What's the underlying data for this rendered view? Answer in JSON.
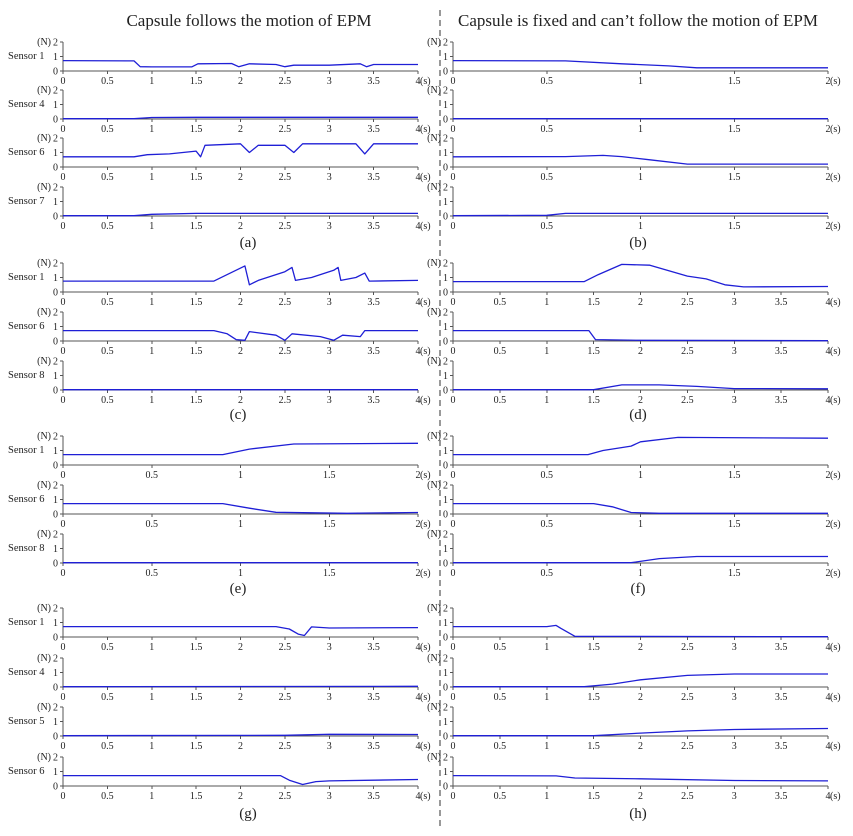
{
  "figure": {
    "left_heading": "Capsule follows the motion of EPM",
    "right_heading": "Capsule is fixed and can’t follow the motion of EPM",
    "y_unit": "(N)",
    "x_unit": "(s)",
    "trace_color": "#1f1fd6"
  },
  "chart_data": [
    {
      "panel": "(a)",
      "type": "line",
      "xlim": [
        0,
        4
      ],
      "ylim": [
        0,
        2
      ],
      "xticks": [
        0,
        0.5,
        1,
        1.5,
        2,
        2.5,
        3,
        3.5,
        4
      ],
      "yticks": [
        0,
        1,
        2
      ],
      "series": [
        {
          "name": "Sensor 1",
          "points": [
            [
              0,
              0.72
            ],
            [
              0.8,
              0.7
            ],
            [
              0.87,
              0.3
            ],
            [
              1.0,
              0.28
            ],
            [
              1.45,
              0.28
            ],
            [
              1.52,
              0.5
            ],
            [
              1.9,
              0.52
            ],
            [
              1.98,
              0.3
            ],
            [
              2.1,
              0.5
            ],
            [
              2.4,
              0.45
            ],
            [
              2.5,
              0.3
            ],
            [
              2.6,
              0.4
            ],
            [
              3.0,
              0.4
            ],
            [
              3.35,
              0.5
            ],
            [
              3.42,
              0.3
            ],
            [
              3.5,
              0.45
            ],
            [
              4,
              0.45
            ]
          ]
        },
        {
          "name": "Sensor 4",
          "points": [
            [
              0,
              0.02
            ],
            [
              0.8,
              0.02
            ],
            [
              1.0,
              0.1
            ],
            [
              1.5,
              0.12
            ],
            [
              4,
              0.12
            ]
          ]
        },
        {
          "name": "Sensor 6",
          "points": [
            [
              0,
              0.7
            ],
            [
              0.8,
              0.7
            ],
            [
              0.95,
              0.85
            ],
            [
              1.2,
              0.9
            ],
            [
              1.5,
              1.1
            ],
            [
              1.55,
              0.7
            ],
            [
              1.6,
              1.5
            ],
            [
              2.0,
              1.6
            ],
            [
              2.1,
              1.0
            ],
            [
              2.2,
              1.5
            ],
            [
              2.5,
              1.5
            ],
            [
              2.6,
              1.0
            ],
            [
              2.7,
              1.6
            ],
            [
              3.3,
              1.6
            ],
            [
              3.4,
              0.9
            ],
            [
              3.5,
              1.6
            ],
            [
              4,
              1.6
            ]
          ]
        },
        {
          "name": "Sensor 7",
          "points": [
            [
              0,
              0.02
            ],
            [
              0.8,
              0.02
            ],
            [
              1.0,
              0.12
            ],
            [
              1.5,
              0.18
            ],
            [
              4,
              0.18
            ]
          ]
        }
      ]
    },
    {
      "panel": "(b)",
      "type": "line",
      "xlim": [
        0,
        2
      ],
      "ylim": [
        0,
        2
      ],
      "xticks": [
        0,
        0.5,
        1,
        1.5,
        2
      ],
      "yticks": [
        0,
        1,
        2
      ],
      "series": [
        {
          "name": "",
          "points": [
            [
              0,
              0.72
            ],
            [
              0.6,
              0.7
            ],
            [
              0.9,
              0.5
            ],
            [
              1.15,
              0.35
            ],
            [
              1.3,
              0.22
            ],
            [
              2,
              0.22
            ]
          ]
        },
        {
          "name": "",
          "points": [
            [
              0,
              0.02
            ],
            [
              2,
              0.02
            ]
          ]
        },
        {
          "name": "",
          "points": [
            [
              0,
              0.7
            ],
            [
              0.6,
              0.72
            ],
            [
              0.8,
              0.8
            ],
            [
              0.9,
              0.72
            ],
            [
              1.05,
              0.5
            ],
            [
              1.25,
              0.2
            ],
            [
              2,
              0.2
            ]
          ]
        },
        {
          "name": "",
          "points": [
            [
              0,
              0.02
            ],
            [
              0.5,
              0.05
            ],
            [
              0.6,
              0.18
            ],
            [
              2,
              0.18
            ]
          ]
        }
      ]
    },
    {
      "panel": "(c)",
      "type": "line",
      "xlim": [
        0,
        4
      ],
      "ylim": [
        0,
        2
      ],
      "xticks": [
        0,
        0.5,
        1,
        1.5,
        2,
        2.5,
        3,
        3.5,
        4
      ],
      "yticks": [
        0,
        1,
        2
      ],
      "series": [
        {
          "name": "Sensor 1",
          "points": [
            [
              0,
              0.75
            ],
            [
              1.7,
              0.75
            ],
            [
              1.85,
              1.2
            ],
            [
              2.05,
              1.8
            ],
            [
              2.1,
              0.5
            ],
            [
              2.2,
              0.8
            ],
            [
              2.5,
              1.4
            ],
            [
              2.58,
              1.7
            ],
            [
              2.62,
              0.8
            ],
            [
              2.8,
              1.0
            ],
            [
              3.05,
              1.5
            ],
            [
              3.1,
              1.7
            ],
            [
              3.13,
              0.8
            ],
            [
              3.3,
              1.0
            ],
            [
              3.4,
              1.3
            ],
            [
              3.45,
              0.75
            ],
            [
              4,
              0.8
            ]
          ]
        },
        {
          "name": "Sensor 6",
          "points": [
            [
              0,
              0.72
            ],
            [
              1.7,
              0.72
            ],
            [
              1.85,
              0.5
            ],
            [
              1.95,
              0.1
            ],
            [
              2.05,
              0.05
            ],
            [
              2.1,
              0.65
            ],
            [
              2.4,
              0.4
            ],
            [
              2.5,
              0.05
            ],
            [
              2.58,
              0.5
            ],
            [
              2.9,
              0.3
            ],
            [
              3.05,
              0.05
            ],
            [
              3.15,
              0.4
            ],
            [
              3.35,
              0.3
            ],
            [
              3.4,
              0.72
            ],
            [
              4,
              0.72
            ]
          ]
        },
        {
          "name": "Sensor 8",
          "points": [
            [
              0,
              0.02
            ],
            [
              4,
              0.02
            ]
          ]
        }
      ]
    },
    {
      "panel": "(d)",
      "type": "line",
      "xlim": [
        0,
        4
      ],
      "ylim": [
        0,
        2
      ],
      "xticks": [
        0,
        0.5,
        1,
        1.5,
        2,
        2.5,
        3,
        3.5,
        4
      ],
      "yticks": [
        0,
        1,
        2
      ],
      "series": [
        {
          "name": "",
          "points": [
            [
              0,
              0.72
            ],
            [
              1.4,
              0.72
            ],
            [
              1.55,
              1.2
            ],
            [
              1.8,
              1.9
            ],
            [
              2.1,
              1.85
            ],
            [
              2.5,
              1.1
            ],
            [
              2.7,
              0.9
            ],
            [
              2.9,
              0.5
            ],
            [
              3.1,
              0.35
            ],
            [
              4,
              0.38
            ]
          ]
        },
        {
          "name": "",
          "points": [
            [
              0,
              0.72
            ],
            [
              1.45,
              0.72
            ],
            [
              1.52,
              0.1
            ],
            [
              2.0,
              0.05
            ],
            [
              4,
              0.02
            ]
          ]
        },
        {
          "name": "",
          "points": [
            [
              0,
              0.02
            ],
            [
              1.5,
              0.02
            ],
            [
              1.8,
              0.35
            ],
            [
              2.2,
              0.35
            ],
            [
              2.6,
              0.25
            ],
            [
              3.0,
              0.1
            ],
            [
              4,
              0.08
            ]
          ]
        }
      ]
    },
    {
      "panel": "(e)",
      "type": "line",
      "xlim": [
        0,
        2
      ],
      "ylim": [
        0,
        2
      ],
      "xticks": [
        0,
        0.5,
        1,
        1.5,
        2
      ],
      "yticks": [
        0,
        1,
        2
      ],
      "series": [
        {
          "name": "Sensor 1",
          "points": [
            [
              0,
              0.72
            ],
            [
              0.9,
              0.72
            ],
            [
              1.05,
              1.1
            ],
            [
              1.3,
              1.45
            ],
            [
              2,
              1.5
            ]
          ]
        },
        {
          "name": "Sensor 6",
          "points": [
            [
              0,
              0.72
            ],
            [
              0.9,
              0.72
            ],
            [
              1.05,
              0.4
            ],
            [
              1.2,
              0.12
            ],
            [
              1.6,
              0.05
            ],
            [
              2,
              0.1
            ]
          ]
        },
        {
          "name": "Sensor 8",
          "points": [
            [
              0,
              0.02
            ],
            [
              2,
              0.02
            ]
          ]
        }
      ]
    },
    {
      "panel": "(f)",
      "type": "line",
      "xlim": [
        0,
        2
      ],
      "ylim": [
        0,
        2
      ],
      "xticks": [
        0,
        0.5,
        1,
        1.5,
        2
      ],
      "yticks": [
        0,
        1,
        2
      ],
      "series": [
        {
          "name": "",
          "points": [
            [
              0,
              0.72
            ],
            [
              0.72,
              0.72
            ],
            [
              0.8,
              1.0
            ],
            [
              0.95,
              1.3
            ],
            [
              1.0,
              1.6
            ],
            [
              1.2,
              1.9
            ],
            [
              2,
              1.85
            ]
          ]
        },
        {
          "name": "",
          "points": [
            [
              0,
              0.72
            ],
            [
              0.75,
              0.72
            ],
            [
              0.85,
              0.5
            ],
            [
              0.95,
              0.1
            ],
            [
              1.1,
              0.05
            ],
            [
              2,
              0.05
            ]
          ]
        },
        {
          "name": "",
          "points": [
            [
              0,
              0.02
            ],
            [
              0.95,
              0.02
            ],
            [
              1.1,
              0.3
            ],
            [
              1.3,
              0.45
            ],
            [
              2,
              0.45
            ]
          ]
        }
      ]
    },
    {
      "panel": "(g)",
      "type": "line",
      "xlim": [
        0,
        4
      ],
      "ylim": [
        0,
        2
      ],
      "xticks": [
        0,
        0.5,
        1,
        1.5,
        2,
        2.5,
        3,
        3.5,
        4
      ],
      "yticks": [
        0,
        1,
        2
      ],
      "series": [
        {
          "name": "Sensor 1",
          "points": [
            [
              0,
              0.72
            ],
            [
              2.4,
              0.72
            ],
            [
              2.55,
              0.55
            ],
            [
              2.65,
              0.2
            ],
            [
              2.72,
              0.1
            ],
            [
              2.8,
              0.7
            ],
            [
              3.0,
              0.62
            ],
            [
              4,
              0.65
            ]
          ]
        },
        {
          "name": "Sensor 4",
          "points": [
            [
              0,
              0.02
            ],
            [
              4,
              0.05
            ]
          ]
        },
        {
          "name": "Sensor 5",
          "points": [
            [
              0,
              0.02
            ],
            [
              2.5,
              0.05
            ],
            [
              3.0,
              0.12
            ],
            [
              4,
              0.1
            ]
          ]
        },
        {
          "name": "Sensor 6",
          "points": [
            [
              0,
              0.72
            ],
            [
              2.45,
              0.72
            ],
            [
              2.55,
              0.4
            ],
            [
              2.7,
              0.1
            ],
            [
              2.85,
              0.3
            ],
            [
              3.0,
              0.35
            ],
            [
              4,
              0.45
            ]
          ]
        }
      ]
    },
    {
      "panel": "(h)",
      "type": "line",
      "xlim": [
        0,
        4
      ],
      "ylim": [
        0,
        2
      ],
      "xticks": [
        0,
        0.5,
        1,
        1.5,
        2,
        2.5,
        3,
        3.5,
        4
      ],
      "yticks": [
        0,
        1,
        2
      ],
      "series": [
        {
          "name": "",
          "points": [
            [
              0,
              0.72
            ],
            [
              1.0,
              0.72
            ],
            [
              1.1,
              0.8
            ],
            [
              1.15,
              0.6
            ],
            [
              1.3,
              0.05
            ],
            [
              4,
              0.02
            ]
          ]
        },
        {
          "name": "",
          "points": [
            [
              0,
              0.02
            ],
            [
              1.4,
              0.02
            ],
            [
              1.7,
              0.2
            ],
            [
              2.0,
              0.5
            ],
            [
              2.5,
              0.8
            ],
            [
              3.0,
              0.9
            ],
            [
              4,
              0.9
            ]
          ]
        },
        {
          "name": "",
          "points": [
            [
              0,
              0.02
            ],
            [
              1.5,
              0.02
            ],
            [
              2.0,
              0.2
            ],
            [
              2.5,
              0.35
            ],
            [
              3.0,
              0.45
            ],
            [
              4,
              0.52
            ]
          ]
        },
        {
          "name": "",
          "points": [
            [
              0,
              0.72
            ],
            [
              1.1,
              0.7
            ],
            [
              1.3,
              0.55
            ],
            [
              2.0,
              0.5
            ],
            [
              3.0,
              0.38
            ],
            [
              4,
              0.35
            ]
          ]
        }
      ]
    }
  ]
}
